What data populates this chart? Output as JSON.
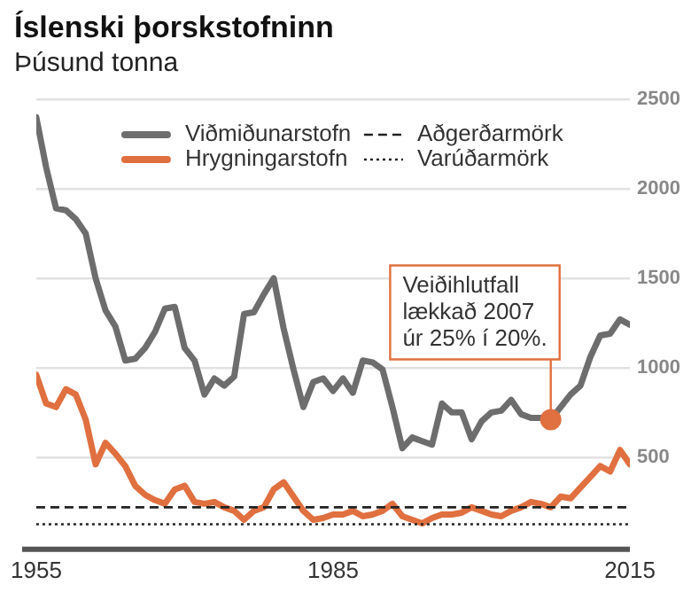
{
  "chart_data": {
    "type": "line",
    "title": "Íslenski þorskstofninn",
    "subtitle": "Þúsund tonna",
    "x": [
      1955,
      1956,
      1957,
      1958,
      1959,
      1960,
      1961,
      1962,
      1963,
      1964,
      1965,
      1966,
      1967,
      1968,
      1969,
      1970,
      1971,
      1972,
      1973,
      1974,
      1975,
      1976,
      1977,
      1978,
      1979,
      1980,
      1981,
      1982,
      1983,
      1984,
      1985,
      1986,
      1987,
      1988,
      1989,
      1990,
      1991,
      1992,
      1993,
      1994,
      1995,
      1996,
      1997,
      1998,
      1999,
      2000,
      2001,
      2002,
      2003,
      2004,
      2005,
      2006,
      2007,
      2008,
      2009,
      2010,
      2011,
      2012,
      2013,
      2014,
      2015
    ],
    "series": [
      {
        "name": "Viðmiðunarstofn",
        "color": "#6d6d6d",
        "values": [
          2400,
          2120,
          1890,
          1880,
          1830,
          1750,
          1500,
          1320,
          1230,
          1040,
          1050,
          1110,
          1200,
          1330,
          1340,
          1110,
          1040,
          850,
          940,
          900,
          950,
          1300,
          1310,
          1410,
          1500,
          1220,
          990,
          780,
          920,
          940,
          870,
          940,
          860,
          1040,
          1030,
          990,
          780,
          550,
          610,
          590,
          570,
          800,
          750,
          750,
          600,
          700,
          750,
          760,
          820,
          740,
          720,
          720,
          710,
          780,
          850,
          900,
          1060,
          1180,
          1190,
          1270,
          1240
        ]
      },
      {
        "name": "Hrygningarstofn",
        "color": "#e0703f",
        "values": [
          960,
          800,
          780,
          880,
          850,
          710,
          460,
          580,
          520,
          450,
          340,
          290,
          260,
          240,
          320,
          340,
          250,
          240,
          250,
          220,
          200,
          150,
          200,
          220,
          320,
          360,
          280,
          200,
          150,
          160,
          180,
          180,
          200,
          170,
          180,
          200,
          240,
          170,
          150,
          130,
          160,
          180,
          180,
          190,
          220,
          200,
          180,
          170,
          200,
          220,
          250,
          240,
          220,
          280,
          270,
          330,
          390,
          450,
          420,
          540,
          460
        ]
      }
    ],
    "ref_lines": [
      {
        "axis": "y",
        "value": 220,
        "label": "Aðgerðarmörk",
        "color": "#222222",
        "line_style": "dashed"
      },
      {
        "axis": "y",
        "value": 125,
        "label": "Varúðarmörk",
        "color": "#222222",
        "line_style": "dotted"
      }
    ],
    "annotations": [
      {
        "text": "Veiðihlutfall\nlækkað 2007\núr 25% í 20%.",
        "x": 2007,
        "y": 710
      }
    ],
    "xlim": [
      1955,
      2015
    ],
    "xticks": [
      1955,
      1985,
      2015
    ],
    "ylim": [
      0,
      2500
    ],
    "yticks": [
      500,
      1000,
      1500,
      2000,
      2500
    ],
    "grid": "y",
    "legend": "top",
    "marker": "none",
    "line_style": "solid"
  }
}
